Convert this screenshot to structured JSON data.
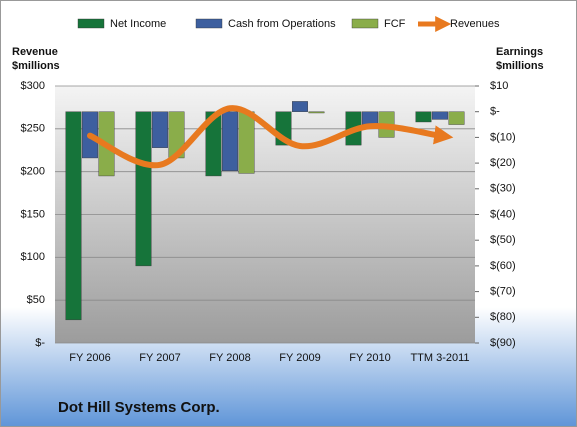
{
  "chart_data": {
    "type": "bar",
    "title": "Dot Hill Systems Corp.",
    "ylabel_lines": [
      "Revenue",
      "$millions"
    ],
    "y2label_lines": [
      "Earnings",
      "$millions"
    ],
    "categories": [
      "FY 2006",
      "FY 2007",
      "FY 2008",
      "FY 2009",
      "FY 2010",
      "TTM 3-2011"
    ],
    "series": [
      {
        "name": "Net Income",
        "type": "bar",
        "axis": "y2",
        "color": "#16743a",
        "values": [
          -81,
          -60,
          -25,
          -13,
          -13,
          -4
        ]
      },
      {
        "name": "Cash from Operations",
        "type": "bar",
        "axis": "y2",
        "color": "#3d5f9f",
        "values": [
          -18,
          -14,
          -23,
          4,
          -5,
          -3
        ]
      },
      {
        "name": "FCF",
        "type": "bar",
        "axis": "y2",
        "color": "#8aad4a",
        "values": [
          -25,
          -18,
          -24,
          -0.5,
          -10,
          -5
        ]
      },
      {
        "name": "Revenues",
        "type": "line",
        "axis": "y",
        "color": "#e8791f",
        "values": [
          242,
          208,
          274,
          230,
          253,
          242
        ]
      }
    ],
    "ylim": [
      0,
      300
    ],
    "yticks": [
      {
        "value": 0,
        "label": "$-"
      },
      {
        "value": 50,
        "label": "$50"
      },
      {
        "value": 100,
        "label": "$100"
      },
      {
        "value": 150,
        "label": "$150"
      },
      {
        "value": 200,
        "label": "$200"
      },
      {
        "value": 250,
        "label": "$250"
      },
      {
        "value": 300,
        "label": "$300"
      }
    ],
    "y2lim": [
      -90,
      10
    ],
    "y2ticks": [
      {
        "value": 10,
        "label": "$10"
      },
      {
        "value": 0,
        "label": "$-"
      },
      {
        "value": -10,
        "label": "$(10)"
      },
      {
        "value": -20,
        "label": "$(20)"
      },
      {
        "value": -30,
        "label": "$(30)"
      },
      {
        "value": -40,
        "label": "$(40)"
      },
      {
        "value": -50,
        "label": "$(50)"
      },
      {
        "value": -60,
        "label": "$(60)"
      },
      {
        "value": -70,
        "label": "$(70)"
      },
      {
        "value": -80,
        "label": "$(80)"
      },
      {
        "value": -90,
        "label": "$(90)"
      }
    ],
    "grid": true
  }
}
